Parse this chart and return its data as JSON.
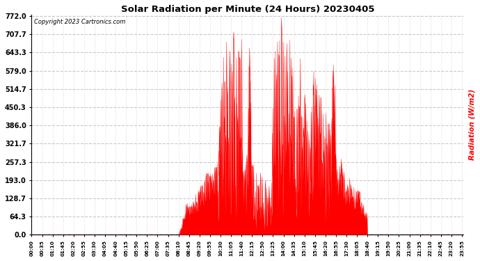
{
  "title": "Solar Radiation per Minute (24 Hours) 20230405",
  "copyright_text": "Copyright 2023 Cartronics.com",
  "ylabel": "Radiation (W/m2)",
  "ylabel_color": "red",
  "bg_color": "#ffffff",
  "plot_bg_color": "#ffffff",
  "bar_color": "red",
  "yticks": [
    0.0,
    64.3,
    128.7,
    193.0,
    257.3,
    321.7,
    386.0,
    450.3,
    514.7,
    579.0,
    643.3,
    707.7,
    772.0
  ],
  "ymin": 0.0,
  "ymax": 772.0,
  "zero_line_color": "red",
  "zero_line_style": "--",
  "total_minutes": 1440,
  "xtick_labels": [
    "00:00",
    "00:35",
    "01:10",
    "01:45",
    "02:20",
    "02:55",
    "03:30",
    "04:05",
    "04:40",
    "05:15",
    "05:50",
    "06:25",
    "07:00",
    "07:35",
    "08:10",
    "08:45",
    "09:20",
    "09:55",
    "10:30",
    "11:05",
    "11:40",
    "12:15",
    "12:50",
    "13:25",
    "14:00",
    "14:35",
    "15:10",
    "15:45",
    "16:20",
    "16:55",
    "17:30",
    "18:05",
    "18:40",
    "19:15",
    "19:50",
    "20:25",
    "21:00",
    "21:35",
    "22:10",
    "22:45",
    "23:20",
    "23:55"
  ]
}
